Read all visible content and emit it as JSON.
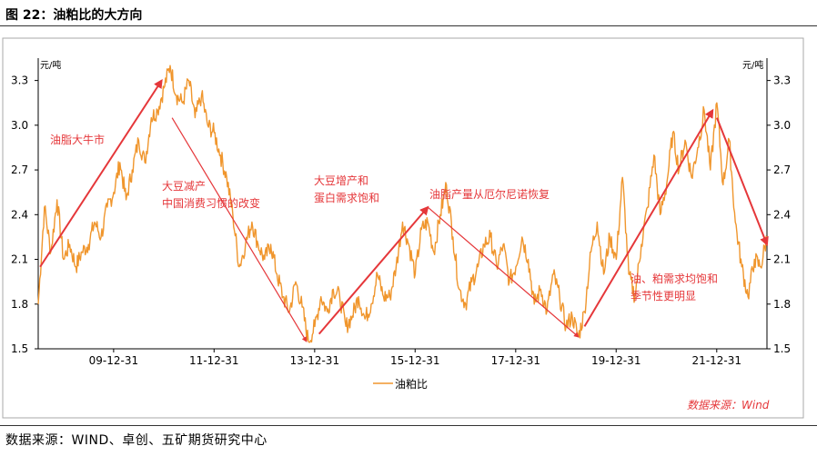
{
  "figure": {
    "title": "图 22：油粕比的大方向",
    "source": "数据来源：WIND、卓创、五矿期货研究中心"
  },
  "chart_data": {
    "type": "line",
    "units_left": "元/吨",
    "units_right": "元/吨",
    "y_ticks": [
      "3.3",
      "3.0",
      "2.7",
      "2.4",
      "2.1",
      "1.8",
      "1.5"
    ],
    "ylim": [
      1.5,
      3.45
    ],
    "x_ticks": [
      "09-12-31",
      "11-12-31",
      "13-12-31",
      "15-12-31",
      "17-12-31",
      "19-12-31",
      "21-12-31"
    ],
    "xlim": [
      "2008-07-01",
      "2022-12-31"
    ],
    "series": [
      {
        "name": "油粕比",
        "color": "#f0962d",
        "points": [
          [
            "2008-07-01",
            1.8
          ],
          [
            "2008-08-15",
            2.45
          ],
          [
            "2008-10-01",
            2.15
          ],
          [
            "2008-11-15",
            2.5
          ],
          [
            "2009-01-01",
            2.1
          ],
          [
            "2009-02-15",
            2.2
          ],
          [
            "2009-04-01",
            2.05
          ],
          [
            "2009-05-15",
            2.15
          ],
          [
            "2009-07-01",
            2.2
          ],
          [
            "2009-08-15",
            2.35
          ],
          [
            "2009-10-01",
            2.25
          ],
          [
            "2009-11-15",
            2.45
          ],
          [
            "2010-01-01",
            2.55
          ],
          [
            "2010-02-15",
            2.75
          ],
          [
            "2010-04-01",
            2.5
          ],
          [
            "2010-05-15",
            2.7
          ],
          [
            "2010-07-01",
            2.9
          ],
          [
            "2010-08-15",
            2.75
          ],
          [
            "2010-10-01",
            3.05
          ],
          [
            "2010-11-15",
            3.1
          ],
          [
            "2011-01-01",
            3.25
          ],
          [
            "2011-02-15",
            3.4
          ],
          [
            "2011-04-01",
            3.2
          ],
          [
            "2011-05-15",
            3.15
          ],
          [
            "2011-07-01",
            3.3
          ],
          [
            "2011-08-15",
            3.05
          ],
          [
            "2011-10-01",
            3.2
          ],
          [
            "2011-11-15",
            3.0
          ],
          [
            "2012-01-01",
            2.95
          ],
          [
            "2012-02-15",
            2.8
          ],
          [
            "2012-04-01",
            2.65
          ],
          [
            "2012-05-15",
            2.4
          ],
          [
            "2012-07-01",
            2.05
          ],
          [
            "2012-08-15",
            2.2
          ],
          [
            "2012-10-01",
            2.35
          ],
          [
            "2012-11-15",
            2.2
          ],
          [
            "2013-01-01",
            2.1
          ],
          [
            "2013-02-15",
            2.2
          ],
          [
            "2013-04-01",
            2.0
          ],
          [
            "2013-05-15",
            1.85
          ],
          [
            "2013-07-01",
            1.75
          ],
          [
            "2013-08-15",
            1.95
          ],
          [
            "2013-10-01",
            1.78
          ],
          [
            "2013-11-15",
            1.55
          ],
          [
            "2014-01-01",
            1.65
          ],
          [
            "2014-02-15",
            1.85
          ],
          [
            "2014-04-01",
            1.75
          ],
          [
            "2014-05-15",
            1.9
          ],
          [
            "2014-07-01",
            1.85
          ],
          [
            "2014-08-15",
            1.65
          ],
          [
            "2014-10-01",
            1.72
          ],
          [
            "2014-11-15",
            1.85
          ],
          [
            "2015-01-01",
            1.7
          ],
          [
            "2015-02-15",
            1.8
          ],
          [
            "2015-04-01",
            2.0
          ],
          [
            "2015-05-15",
            1.85
          ],
          [
            "2015-07-01",
            1.85
          ],
          [
            "2015-08-15",
            2.05
          ],
          [
            "2015-10-01",
            2.35
          ],
          [
            "2015-11-15",
            2.2
          ],
          [
            "2016-01-01",
            2.0
          ],
          [
            "2016-02-15",
            2.3
          ],
          [
            "2016-04-01",
            2.35
          ],
          [
            "2016-05-15",
            2.15
          ],
          [
            "2016-07-01",
            2.4
          ],
          [
            "2016-08-15",
            2.6
          ],
          [
            "2016-10-01",
            2.25
          ],
          [
            "2016-11-15",
            1.9
          ],
          [
            "2017-01-01",
            1.8
          ],
          [
            "2017-02-15",
            1.95
          ],
          [
            "2017-04-01",
            2.05
          ],
          [
            "2017-05-15",
            2.2
          ],
          [
            "2017-07-01",
            2.25
          ],
          [
            "2017-08-15",
            2.05
          ],
          [
            "2017-10-01",
            2.2
          ],
          [
            "2017-11-15",
            1.95
          ],
          [
            "2018-01-01",
            2.05
          ],
          [
            "2018-02-15",
            2.25
          ],
          [
            "2018-04-01",
            2.1
          ],
          [
            "2018-05-15",
            1.8
          ],
          [
            "2018-07-01",
            1.9
          ],
          [
            "2018-08-15",
            1.75
          ],
          [
            "2018-10-01",
            2.0
          ],
          [
            "2018-11-15",
            1.85
          ],
          [
            "2019-01-01",
            1.65
          ],
          [
            "2019-02-15",
            1.72
          ],
          [
            "2019-04-01",
            1.58
          ],
          [
            "2019-05-15",
            1.75
          ],
          [
            "2019-07-01",
            2.15
          ],
          [
            "2019-08-15",
            2.35
          ],
          [
            "2019-10-01",
            2.0
          ],
          [
            "2019-11-15",
            2.25
          ],
          [
            "2020-01-01",
            2.1
          ],
          [
            "2020-02-15",
            2.65
          ],
          [
            "2020-04-01",
            2.0
          ],
          [
            "2020-05-15",
            1.85
          ],
          [
            "2020-07-01",
            2.2
          ],
          [
            "2020-08-15",
            2.45
          ],
          [
            "2020-10-01",
            2.8
          ],
          [
            "2020-11-15",
            2.4
          ],
          [
            "2021-01-01",
            2.6
          ],
          [
            "2021-02-15",
            2.95
          ],
          [
            "2021-04-01",
            2.7
          ],
          [
            "2021-05-15",
            2.9
          ],
          [
            "2021-07-01",
            2.65
          ],
          [
            "2021-08-15",
            2.85
          ],
          [
            "2021-10-01",
            3.1
          ],
          [
            "2021-11-15",
            2.7
          ],
          [
            "2022-01-01",
            3.15
          ],
          [
            "2022-02-15",
            2.6
          ],
          [
            "2022-04-01",
            2.9
          ],
          [
            "2022-05-15",
            2.35
          ],
          [
            "2022-07-01",
            2.05
          ],
          [
            "2022-08-15",
            1.85
          ],
          [
            "2022-10-01",
            2.1
          ],
          [
            "2022-11-15",
            2.05
          ],
          [
            "2022-12-31",
            2.25
          ]
        ]
      }
    ],
    "annotations": [
      {
        "text": [
          "油脂大牛市"
        ],
        "arrow": [
          [
            "2008-07-15",
            2.05
          ],
          [
            "2010-12-15",
            3.3
          ]
        ]
      },
      {
        "text": [
          "大豆减产",
          "中国消费习惯的改变"
        ],
        "arrow": [
          [
            "2011-03-01",
            3.05
          ],
          [
            "2013-11-01",
            1.55
          ]
        ]
      },
      {
        "text": [
          "大豆增产和",
          "蛋白需求饱和"
        ],
        "arrow": [
          [
            "2014-02-01",
            1.6
          ],
          [
            "2016-04-01",
            2.45
          ]
        ]
      },
      {
        "text": [
          "油脂产量从厄尔尼诺恢复"
        ],
        "arrow": [
          [
            "2016-04-01",
            2.45
          ],
          [
            "2019-04-01",
            1.58
          ]
        ]
      },
      {
        "text": [
          "油、粕需求均饱和",
          "季节性更明显"
        ],
        "arrow": [
          [
            "2019-05-15",
            1.65
          ],
          [
            "2021-12-01",
            3.1
          ]
        ]
      },
      {
        "text": [],
        "arrow": [
          [
            "2022-01-01",
            3.05
          ],
          [
            "2022-12-31",
            2.2
          ]
        ]
      }
    ],
    "legend": {
      "label": "油粕比",
      "position": "bottom"
    },
    "source_label": "数据来源：Wind",
    "grid": false
  }
}
